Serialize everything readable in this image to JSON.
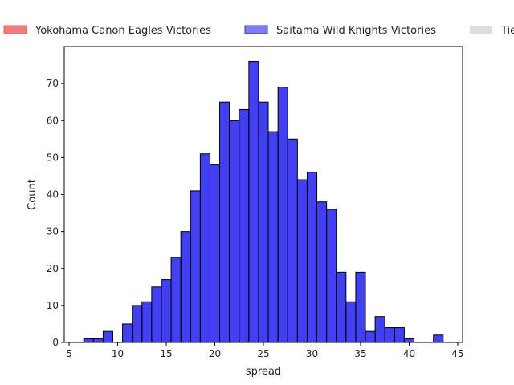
{
  "chart_data": {
    "type": "bar",
    "title": "",
    "xlabel": "spread",
    "ylabel": "Count",
    "xlim": [
      4.5,
      45.5
    ],
    "ylim": [
      0,
      80
    ],
    "xticks": [
      5,
      10,
      15,
      20,
      25,
      30,
      35,
      40,
      45
    ],
    "yticks": [
      0,
      10,
      20,
      30,
      40,
      50,
      60,
      70
    ],
    "bin_width": 1,
    "grid": false,
    "legend": {
      "placement": "top",
      "entries": [
        {
          "label": "Yokohama Canon Eagles Victories",
          "color": "#f87b7b"
        },
        {
          "label": "Saitama Wild Knights Victories",
          "color": "#7b7bf8"
        },
        {
          "label": "Tie",
          "color": "#dddddd"
        }
      ]
    },
    "series": [
      {
        "name": "Saitama Wild Knights Victories",
        "color": "#0000ee",
        "bins": [
          {
            "x": 7,
            "count": 1
          },
          {
            "x": 8,
            "count": 1
          },
          {
            "x": 9,
            "count": 3
          },
          {
            "x": 11,
            "count": 5
          },
          {
            "x": 12,
            "count": 10
          },
          {
            "x": 13,
            "count": 11
          },
          {
            "x": 14,
            "count": 15
          },
          {
            "x": 15,
            "count": 17
          },
          {
            "x": 16,
            "count": 23
          },
          {
            "x": 17,
            "count": 30
          },
          {
            "x": 18,
            "count": 41
          },
          {
            "x": 19,
            "count": 51
          },
          {
            "x": 20,
            "count": 48
          },
          {
            "x": 21,
            "count": 65
          },
          {
            "x": 22,
            "count": 60
          },
          {
            "x": 23,
            "count": 63
          },
          {
            "x": 24,
            "count": 76
          },
          {
            "x": 25,
            "count": 65
          },
          {
            "x": 26,
            "count": 57
          },
          {
            "x": 27,
            "count": 69
          },
          {
            "x": 28,
            "count": 55
          },
          {
            "x": 29,
            "count": 44
          },
          {
            "x": 30,
            "count": 46
          },
          {
            "x": 31,
            "count": 38
          },
          {
            "x": 32,
            "count": 36
          },
          {
            "x": 33,
            "count": 19
          },
          {
            "x": 34,
            "count": 11
          },
          {
            "x": 35,
            "count": 19
          },
          {
            "x": 36,
            "count": 3
          },
          {
            "x": 37,
            "count": 7
          },
          {
            "x": 38,
            "count": 4
          },
          {
            "x": 39,
            "count": 4
          },
          {
            "x": 40,
            "count": 1
          },
          {
            "x": 43,
            "count": 2
          }
        ]
      }
    ]
  }
}
